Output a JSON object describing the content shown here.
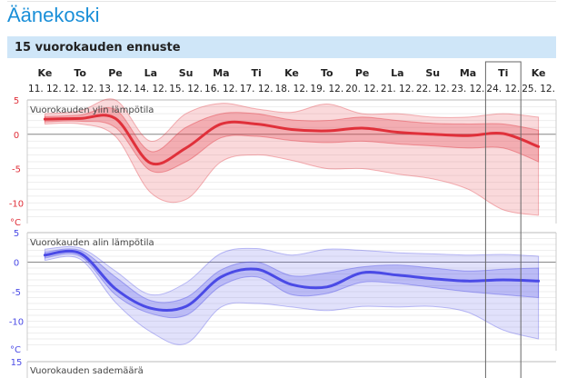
{
  "page": {
    "city": "Äänekoski",
    "forecast_title": "15 vuorokauden ennuste"
  },
  "colors": {
    "accent": "#1a8fd8",
    "header_bg": "#cfe6f8",
    "max_temp": "#e0303a",
    "min_temp": "#4a4ae6"
  },
  "days": [
    {
      "day": "Ke",
      "date": "11. 12."
    },
    {
      "day": "To",
      "date": "12. 12."
    },
    {
      "day": "Pe",
      "date": "13. 12."
    },
    {
      "day": "La",
      "date": "14. 12."
    },
    {
      "day": "Su",
      "date": "15. 12."
    },
    {
      "day": "Ma",
      "date": "16. 12."
    },
    {
      "day": "Ti",
      "date": "17. 12."
    },
    {
      "day": "Ke",
      "date": "18. 12."
    },
    {
      "day": "To",
      "date": "19. 12."
    },
    {
      "day": "Pe",
      "date": "20. 12."
    },
    {
      "day": "La",
      "date": "21. 12."
    },
    {
      "day": "Su",
      "date": "22. 12."
    },
    {
      "day": "Ma",
      "date": "23. 12."
    },
    {
      "day": "Ti",
      "date": "24. 12."
    },
    {
      "day": "Ke",
      "date": "25. 12."
    }
  ],
  "highlighted_day": "Ti 24. 12.",
  "chart_data": [
    {
      "type": "area",
      "title": "Vuorokauden ylin lämpötila",
      "unit": "°C",
      "ylim": [
        -13,
        5
      ],
      "yticks": [
        5,
        0,
        -5,
        -10
      ],
      "grid": true,
      "x": [
        "11. 12.",
        "12. 12.",
        "13. 12.",
        "14. 12.",
        "15. 12.",
        "16. 12.",
        "17. 12.",
        "18. 12.",
        "19. 12.",
        "20. 12.",
        "21. 12.",
        "22. 12.",
        "23. 12.",
        "24. 12.",
        "25. 12."
      ],
      "series": [
        {
          "role": "median",
          "values": [
            2.2,
            2.3,
            2.3,
            -4.2,
            -2,
            1.5,
            1.5,
            0.7,
            0.5,
            0.9,
            0.3,
            0,
            -0.2,
            0.1,
            -1.8
          ]
        },
        {
          "role": "inner_upper",
          "values": [
            2.6,
            2.8,
            3.6,
            -2.5,
            1,
            3,
            3,
            2.1,
            2,
            2.5,
            2,
            1.6,
            1.5,
            1.5,
            0.6
          ]
        },
        {
          "role": "inner_lower",
          "values": [
            1.8,
            1.9,
            1.0,
            -5.3,
            -4,
            -0.5,
            -0.3,
            -0.9,
            -1.2,
            -1.0,
            -1.4,
            -1.7,
            -2.0,
            -2.0,
            -4.0
          ]
        },
        {
          "role": "outer_upper",
          "values": [
            3.0,
            3.4,
            5,
            -1,
            3,
            4.5,
            3.7,
            3.2,
            4.4,
            3.0,
            3.0,
            2.5,
            2.5,
            3.0,
            2.5
          ]
        },
        {
          "role": "outer_lower",
          "values": [
            1.5,
            1.5,
            -0.3,
            -8.5,
            -9.5,
            -4,
            -3,
            -3.8,
            -5,
            -5,
            -5.8,
            -6.5,
            -8,
            -11,
            -11.8
          ]
        }
      ]
    },
    {
      "type": "area",
      "title": "Vuorokauden alin lämpötila",
      "unit": "°C",
      "ylim": [
        -15,
        5
      ],
      "yticks": [
        5,
        0,
        -5,
        -10
      ],
      "grid": true,
      "x": [
        "11. 12.",
        "12. 12.",
        "13. 12.",
        "14. 12.",
        "15. 12.",
        "16. 12.",
        "17. 12.",
        "18. 12.",
        "19. 12.",
        "20. 12.",
        "21. 12.",
        "22. 12.",
        "23. 12.",
        "24. 12.",
        "25. 12."
      ],
      "series": [
        {
          "role": "median",
          "values": [
            1.2,
            1.5,
            -4.5,
            -7.8,
            -7.5,
            -2.5,
            -1.2,
            -3.8,
            -4.2,
            -1.8,
            -2.2,
            -2.8,
            -3.2,
            -3.0,
            -3.2
          ]
        },
        {
          "role": "inner_upper",
          "values": [
            1.7,
            2.0,
            -2.5,
            -6.5,
            -6,
            -1.3,
            0,
            -2.3,
            -1.8,
            -0.8,
            -0.5,
            -1.0,
            -1.5,
            -1.2,
            -1.0
          ]
        },
        {
          "role": "inner_lower",
          "values": [
            0.7,
            1.0,
            -5.5,
            -8.7,
            -9.0,
            -4.0,
            -2.5,
            -5.5,
            -5.3,
            -3.4,
            -3.6,
            -4.3,
            -5.0,
            -5.5,
            -6.0
          ]
        },
        {
          "role": "outer_upper",
          "values": [
            2.2,
            2.4,
            -1.5,
            -5.5,
            -3.5,
            1.5,
            2.3,
            1.2,
            2.2,
            2.0,
            1.6,
            1.4,
            1.2,
            1.3,
            1.0
          ]
        },
        {
          "role": "outer_lower",
          "values": [
            0.3,
            0.5,
            -6.8,
            -11.8,
            -13.8,
            -7.6,
            -7,
            -7.6,
            -8.2,
            -7.5,
            -7.6,
            -7.5,
            -8.5,
            -11.5,
            -13
          ]
        }
      ]
    },
    {
      "type": "bar",
      "title": "Vuorokauden sademäärä",
      "yticks": [
        15
      ],
      "ylim": [
        0,
        15
      ]
    }
  ]
}
